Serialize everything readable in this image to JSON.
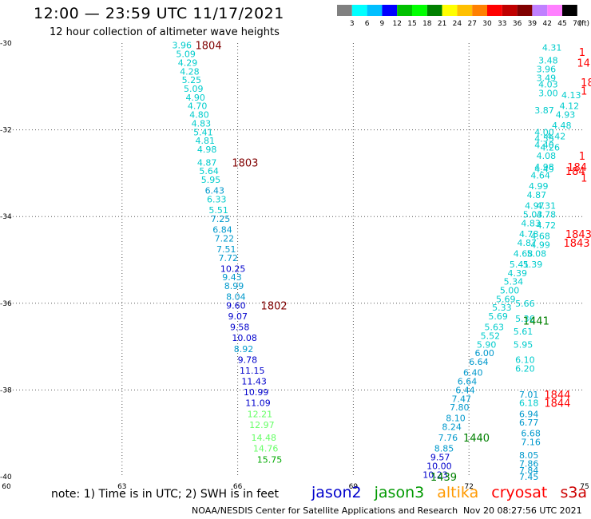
{
  "header": {
    "title": "12:00 — 23:59 UTC 11/17/2021",
    "subtitle": "12 hour collection of altimeter wave heights"
  },
  "colorbar": {
    "labels": [
      "3",
      "6",
      "9",
      "12",
      "15",
      "18",
      "21",
      "24",
      "27",
      "30",
      "33",
      "36",
      "39",
      "42",
      "45",
      "70",
      "(ft)"
    ],
    "colors": [
      "#808080",
      "#00ffff",
      "#00bfff",
      "#0000ff",
      "#00c000",
      "#00ff00",
      "#008000",
      "#ffff00",
      "#ffc000",
      "#ff8000",
      "#ff0000",
      "#c00000",
      "#800000",
      "#c080ff",
      "#ff80ff",
      "#000000"
    ]
  },
  "footer": {
    "note": "note:  1) Time is in UTC;  2) SWH is in feet",
    "credit": "NOAA/NESDIS Center for Satellite Applications and Research",
    "stamp": "Nov 20 08:27:56 UTC 2021"
  },
  "legend": [
    {
      "name": "jason2",
      "color": "#0000cc"
    },
    {
      "name": "jason3",
      "color": "#009900"
    },
    {
      "name": "altika",
      "color": "#ff9900"
    },
    {
      "name": "cryosat",
      "color": "#ff0000"
    },
    {
      "name": "s3a",
      "color": "#cc0000"
    }
  ],
  "chart_data": {
    "type": "scatter",
    "xlim": [
      60,
      75
    ],
    "ylim": [
      -40,
      -30
    ],
    "x_ticks": [
      60,
      63,
      66,
      69,
      72,
      75
    ],
    "x_tick_labels": [
      "60",
      "63",
      "66",
      "69",
      "72",
      "75"
    ],
    "y_ticks": [
      -30,
      -32,
      -34,
      -36,
      -38,
      -40
    ],
    "y_tick_labels": [
      "-30",
      "-32",
      "-34",
      "-36",
      "-38",
      "-40"
    ],
    "grid": true,
    "tracks": [
      {
        "points": [
          [
            64.3,
            -30.05,
            "3.96",
            "#00cccc"
          ],
          [
            64.4,
            -30.25,
            "5.09",
            "#00cccc"
          ],
          [
            64.45,
            -30.45,
            "4.29",
            "#00cccc"
          ],
          [
            64.5,
            -30.65,
            "4.28",
            "#00cccc"
          ],
          [
            64.55,
            -30.85,
            "5.25",
            "#00cccc"
          ],
          [
            64.6,
            -31.05,
            "5.09",
            "#00cccc"
          ],
          [
            64.65,
            -31.25,
            "4.90",
            "#00cccc"
          ],
          [
            64.7,
            -31.45,
            "4.70",
            "#00cccc"
          ],
          [
            64.75,
            -31.65,
            "4.80",
            "#00cccc"
          ],
          [
            64.8,
            -31.85,
            "4.83",
            "#00cccc"
          ],
          [
            64.85,
            -32.05,
            "5.41",
            "#00cccc"
          ],
          [
            64.9,
            -32.25,
            "4.81",
            "#00cccc"
          ],
          [
            64.95,
            -32.45,
            "4.98",
            "#00cccc"
          ],
          [
            64.95,
            -32.75,
            "4.87",
            "#00cccc"
          ],
          [
            65.0,
            -32.95,
            "5.64",
            "#00cccc"
          ],
          [
            65.05,
            -33.15,
            "5.95",
            "#00cccc"
          ],
          [
            65.15,
            -33.4,
            "6.43",
            "#0099cc"
          ],
          [
            65.2,
            -33.6,
            "6.33",
            "#00cccc"
          ],
          [
            65.25,
            -33.85,
            "5.51",
            "#00cccc"
          ],
          [
            65.3,
            -34.05,
            "7.25",
            "#0099cc"
          ],
          [
            65.35,
            -34.3,
            "6.84",
            "#0099cc"
          ],
          [
            65.4,
            -34.5,
            "7.22",
            "#0099cc"
          ],
          [
            65.45,
            -34.75,
            "7.51",
            "#0099cc"
          ],
          [
            65.5,
            -34.95,
            "7.72",
            "#0099cc"
          ],
          [
            65.55,
            -35.2,
            "10.25",
            "#0000cc"
          ],
          [
            65.6,
            -35.4,
            "9.43",
            "#0099cc"
          ],
          [
            65.65,
            -35.6,
            "8.99",
            "#0099cc"
          ],
          [
            65.7,
            -35.85,
            "8.04",
            "#0099cc"
          ],
          [
            65.7,
            -36.05,
            "9.60",
            "#0000cc"
          ],
          [
            65.75,
            -36.3,
            "9.07",
            "#0000cc"
          ],
          [
            65.8,
            -36.55,
            "9.58",
            "#0000cc"
          ],
          [
            65.85,
            -36.8,
            "10.08",
            "#0000cc"
          ],
          [
            65.9,
            -37.05,
            "8.92",
            "#0099cc"
          ],
          [
            66.0,
            -37.3,
            "9.78",
            "#0000cc"
          ],
          [
            66.05,
            -37.55,
            "11.15",
            "#0000cc"
          ],
          [
            66.1,
            -37.8,
            "11.43",
            "#0000cc"
          ],
          [
            66.15,
            -38.05,
            "10.99",
            "#0000cc"
          ],
          [
            66.2,
            -38.3,
            "11.09",
            "#0000cc"
          ],
          [
            66.25,
            -38.55,
            "12.21",
            "#66ff66"
          ],
          [
            66.3,
            -38.8,
            "12.97",
            "#66ff66"
          ],
          [
            66.35,
            -39.1,
            "14.48",
            "#66ff66"
          ],
          [
            66.4,
            -39.35,
            "14.76",
            "#66ff66"
          ],
          [
            66.5,
            -39.6,
            "15.75",
            "#00aa00"
          ]
        ]
      },
      {
        "points": [
          [
            70.8,
            -39.95,
            "10.23",
            "#0000cc"
          ],
          [
            70.9,
            -39.75,
            "10.00",
            "#0000cc"
          ],
          [
            71.0,
            -39.55,
            "9.57",
            "#0000cc"
          ],
          [
            71.1,
            -39.35,
            "8.85",
            "#0099cc"
          ],
          [
            71.2,
            -39.1,
            "7.76",
            "#0099cc"
          ],
          [
            71.3,
            -38.85,
            "8.24",
            "#0099cc"
          ],
          [
            71.4,
            -38.65,
            "8.10",
            "#0099cc"
          ],
          [
            71.5,
            -38.4,
            "7.80",
            "#0099cc"
          ],
          [
            71.55,
            -38.2,
            "7.47",
            "#0099cc"
          ],
          [
            71.65,
            -38.0,
            "6.44",
            "#0099cc"
          ],
          [
            71.7,
            -37.8,
            "6.64",
            "#0099cc"
          ],
          [
            71.85,
            -37.6,
            "6.40",
            "#0099cc"
          ],
          [
            72.0,
            -37.35,
            "6.64",
            "#0099cc"
          ],
          [
            72.15,
            -37.15,
            "6.00",
            "#0099cc"
          ],
          [
            72.2,
            -36.95,
            "5.90",
            "#00cccc"
          ],
          [
            72.3,
            -36.75,
            "5.52",
            "#00cccc"
          ],
          [
            72.4,
            -36.55,
            "5.63",
            "#00cccc"
          ],
          [
            72.5,
            -36.3,
            "5.69",
            "#00cccc"
          ],
          [
            72.6,
            -36.1,
            "5.33",
            "#00cccc"
          ],
          [
            72.7,
            -35.9,
            "5.69",
            "#00cccc"
          ],
          [
            72.8,
            -35.7,
            "5.00",
            "#00cccc"
          ],
          [
            72.9,
            -35.5,
            "5.34",
            "#00cccc"
          ],
          [
            73.0,
            -35.3,
            "4.39",
            "#00cccc"
          ],
          [
            73.05,
            -35.1,
            "5.41",
            "#00cccc"
          ],
          [
            73.15,
            -34.85,
            "4.68",
            "#00cccc"
          ],
          [
            73.25,
            -34.6,
            "4.87",
            "#00cccc"
          ],
          [
            73.3,
            -34.4,
            "4.78",
            "#00cccc"
          ],
          [
            73.35,
            -34.15,
            "4.83",
            "#00cccc"
          ],
          [
            73.4,
            -33.95,
            "5.03",
            "#00cccc"
          ],
          [
            73.45,
            -33.75,
            "4.97",
            "#00cccc"
          ],
          [
            73.5,
            -33.5,
            "4.87",
            "#00cccc"
          ],
          [
            73.55,
            -33.3,
            "4.99",
            "#00cccc"
          ],
          [
            73.6,
            -33.05,
            "4.64",
            "#00cccc"
          ],
          [
            73.7,
            -32.85,
            "4.98",
            "#00cccc"
          ],
          [
            73.75,
            -32.6,
            "4.08",
            "#00cccc"
          ],
          [
            73.85,
            -32.4,
            "4.26",
            "#00cccc"
          ],
          [
            74.0,
            -32.15,
            "4.42",
            "#00cccc"
          ],
          [
            74.15,
            -31.9,
            "4.48",
            "#00cccc"
          ],
          [
            74.25,
            -31.65,
            "4.93",
            "#00cccc"
          ],
          [
            74.35,
            -31.45,
            "4.12",
            "#00cccc"
          ],
          [
            74.4,
            -31.2,
            "4.13",
            "#00cccc"
          ]
        ]
      },
      {
        "points": [
          [
            73.9,
            -30.1,
            "4.31",
            "#00cccc"
          ],
          [
            73.8,
            -30.4,
            "3.48",
            "#00cccc"
          ],
          [
            73.75,
            -30.6,
            "3.96",
            "#00cccc"
          ],
          [
            73.75,
            -30.8,
            "3.49",
            "#00cccc"
          ],
          [
            73.8,
            -30.95,
            "4.03",
            "#00cccc"
          ],
          [
            73.8,
            -31.15,
            "3.00",
            "#00cccc"
          ],
          [
            73.7,
            -31.55,
            "3.87",
            "#00cccc"
          ],
          [
            73.7,
            -32.05,
            "4.00",
            "#00cccc"
          ],
          [
            73.7,
            -32.2,
            "4.53",
            "#00cccc"
          ],
          [
            73.7,
            -32.35,
            "4.40",
            "#00cccc"
          ],
          [
            73.7,
            -32.9,
            "4.49",
            "#00cccc"
          ],
          [
            73.75,
            -33.75,
            "4.31",
            "#00cccc"
          ],
          [
            73.75,
            -33.95,
            "4.78",
            "#00cccc"
          ],
          [
            73.75,
            -34.2,
            "4.72",
            "#00cccc"
          ],
          [
            73.6,
            -34.45,
            "4.68",
            "#00cccc"
          ],
          [
            73.6,
            -34.65,
            "4.99",
            "#00cccc"
          ],
          [
            73.5,
            -34.85,
            "5.08",
            "#00cccc"
          ],
          [
            73.4,
            -35.1,
            "5.39",
            "#00cccc"
          ],
          [
            73.2,
            -36.0,
            "5.66",
            "#00cccc"
          ],
          [
            73.2,
            -36.35,
            "5.36",
            "#00cccc"
          ],
          [
            73.15,
            -36.65,
            "5.61",
            "#00cccc"
          ],
          [
            73.15,
            -36.95,
            "5.95",
            "#00cccc"
          ],
          [
            73.2,
            -37.3,
            "6.10",
            "#00cccc"
          ],
          [
            73.2,
            -37.5,
            "6.20",
            "#00cccc"
          ],
          [
            73.3,
            -38.1,
            "7.01",
            "#0099cc"
          ],
          [
            73.3,
            -38.3,
            "6.18",
            "#00cccc"
          ],
          [
            73.3,
            -38.55,
            "6.94",
            "#0099cc"
          ],
          [
            73.3,
            -38.75,
            "6.77",
            "#0099cc"
          ],
          [
            73.35,
            -39.0,
            "6.68",
            "#0099cc"
          ],
          [
            73.35,
            -39.2,
            "7.16",
            "#0099cc"
          ],
          [
            73.3,
            -39.5,
            "8.05",
            "#0099cc"
          ],
          [
            73.3,
            -39.7,
            "7.86",
            "#0099cc"
          ],
          [
            73.3,
            -39.85,
            "7.84",
            "#0099cc"
          ],
          [
            73.3,
            -40.0,
            "7.45",
            "#0099cc"
          ]
        ]
      }
    ],
    "time_labels": [
      [
        64.9,
        -30.05,
        "1804",
        "#800000"
      ],
      [
        65.85,
        -32.75,
        "1803",
        "#800000"
      ],
      [
        66.6,
        -36.05,
        "1802",
        "#800000"
      ],
      [
        71.85,
        -39.1,
        "1440",
        "#008000"
      ],
      [
        71.0,
        -40.0,
        "1439",
        "#008000"
      ],
      [
        73.4,
        -36.4,
        "1441",
        "#008000"
      ],
      [
        74.85,
        -30.2,
        "1",
        "#ff0000"
      ],
      [
        74.8,
        -30.45,
        "14",
        "#ff0000"
      ],
      [
        74.9,
        -30.9,
        "18",
        "#ff0000"
      ],
      [
        74.9,
        -31.1,
        "1",
        "#ff0000"
      ],
      [
        74.55,
        -32.85,
        "184",
        "#ff0000"
      ],
      [
        74.5,
        -32.95,
        "184",
        "#ff0000"
      ],
      [
        74.5,
        -34.4,
        "1843",
        "#ff0000"
      ],
      [
        74.45,
        -34.6,
        "1843",
        "#ff0000"
      ],
      [
        73.95,
        -38.1,
        "1844",
        "#ff0000"
      ],
      [
        73.95,
        -38.3,
        "1844",
        "#ff0000"
      ],
      [
        74.85,
        -32.6,
        "1",
        "#ff0000"
      ],
      [
        74.9,
        -33.1,
        "1",
        "#ff0000"
      ]
    ]
  }
}
